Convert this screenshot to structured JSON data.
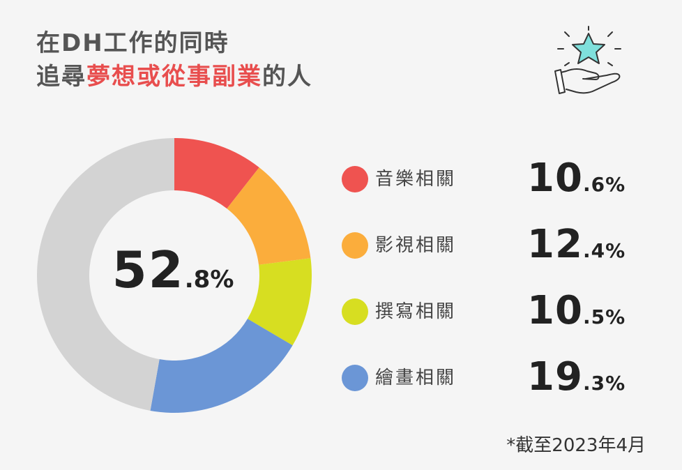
{
  "title": {
    "line1": "在DH工作的同時",
    "line2_prefix": "追尋",
    "line2_highlight": "夢想或從事副業",
    "line2_suffix": "的人"
  },
  "center": {
    "main": "52",
    "decimal": ".8",
    "unit": "%"
  },
  "chart_data": {
    "type": "pie",
    "title": "在DH工作的同時追尋夢想或從事副業的人",
    "categories": [
      "音樂相關",
      "影視相關",
      "撰寫相關",
      "繪畫相關",
      ""
    ],
    "values": [
      10.6,
      12.4,
      10.5,
      19.3,
      47.2
    ],
    "colors": [
      "#ef5350",
      "#fbad3c",
      "#d7de21",
      "#6b96d6",
      "#d3d3d3"
    ],
    "total_highlighted": 52.8,
    "unit": "%",
    "legend": "right"
  },
  "legend": [
    {
      "label": "音樂相關",
      "main": "10",
      "decimal": ".6",
      "unit": "%",
      "color": "#ef5350"
    },
    {
      "label": "影視相關",
      "main": "12",
      "decimal": ".4",
      "unit": "%",
      "color": "#fbad3c"
    },
    {
      "label": "撰寫相關",
      "main": "10",
      "decimal": ".5",
      "unit": "%",
      "color": "#d7de21"
    },
    {
      "label": "繪畫相關",
      "main": "19",
      "decimal": ".3",
      "unit": "%",
      "color": "#6b96d6"
    }
  ],
  "note": "*截至2023年4月",
  "icons": {
    "decoration": "hand-holding-star-icon"
  }
}
